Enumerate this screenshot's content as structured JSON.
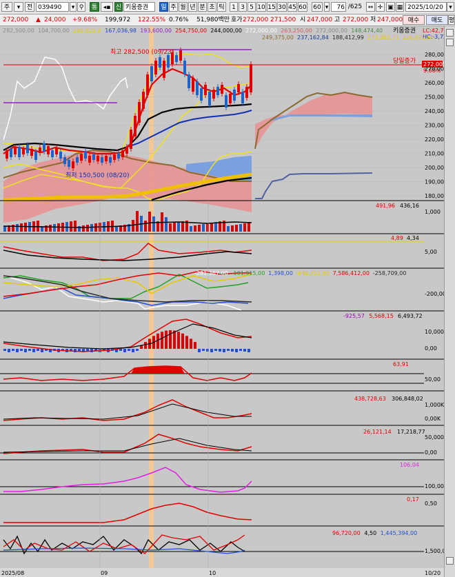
{
  "toolbar": {
    "market": "주",
    "type": "전",
    "code": "039490",
    "group_badge": "통",
    "grade_badge": "신",
    "name": "키움증권",
    "period_selected": "일",
    "periods": [
      "주",
      "월",
      "년",
      "분",
      "초",
      "틱"
    ],
    "intervals": [
      "1",
      "3",
      "5",
      "10",
      "15",
      "30",
      "45",
      "60",
      "60"
    ],
    "count": "76",
    "total": "/625",
    "date": "2025/10/20",
    "buy_label": "매수",
    "sell_label": "매도",
    "eval_label": "평"
  },
  "quote": {
    "price": "272,000",
    "change": "24,000",
    "change_pct": "+9.68%",
    "volume": "199,972",
    "vol_ratio": "122.55%",
    "turnover_pct": "0.76%",
    "amount": "51,980백만",
    "ask_label": "호가",
    "ask1": "272,000",
    "ask2": "271,500",
    "open_label": "시",
    "open": "247,000",
    "high_label": "고",
    "high": "272,000",
    "low_label": "저",
    "low": "247,000"
  },
  "legend": {
    "ma_values": [
      "282,500,00",
      "104,700,00",
      "192,025,0",
      "167,036,98",
      "193,600,00",
      "254,750,00",
      "244,000,00",
      "272,000,00",
      "263,250,00",
      "272,000,00",
      "148,474,40"
    ],
    "ma_colors": [
      "#8a8a8a",
      "#8a8a8a",
      "#e8c800",
      "#2040c0",
      "#9020c0",
      "#e00000",
      "#000000",
      "#ffffff",
      "#d06060",
      "#8a8a8a",
      "#4a8a4a"
    ],
    "name_label": "키움증권",
    "lc": "LC:42,78",
    "hc": "HC:-3,72",
    "row2": [
      "249,375,00",
      "237,162,84",
      "188,412,99",
      "273,392,71",
      "226,072,97"
    ],
    "row2_colors": [
      "#8a6a30",
      "#1a3a90",
      "#2a2a2a",
      "#e8c800",
      "#e8c800"
    ],
    "high_note": "최고 282,500 (09/23)",
    "low_note": "최저 150,500 (08/20)",
    "today_label": "당일증가",
    "price_tag": "272,000",
    "pct_tag": "9.68%"
  },
  "axes": {
    "price": [
      "280,000",
      "270,000",
      "260,000",
      "250,000",
      "240,000",
      "230,000",
      "220,000",
      "210,000",
      "200,000",
      "190,000",
      "180,000"
    ],
    "volume": [
      "1,000"
    ],
    "ind2": [
      "5,00"
    ],
    "ind3": [
      "-200,000"
    ],
    "ind4": [
      "10,000",
      "0,00"
    ],
    "ind5": [
      "50,00"
    ],
    "ind6": [
      "1,000K",
      "0,00K"
    ],
    "ind7": [
      "50,000",
      "0,00"
    ],
    "ind8": [
      "100,00"
    ],
    "ind9": [
      "0,50"
    ],
    "ind10": [
      "1,500,000"
    ],
    "dates": [
      "2025/08",
      "09",
      "10",
      "10/20"
    ]
  },
  "panels": {
    "volume": {
      "v1": "491,96",
      "v2": "436,16"
    },
    "ind2": {
      "v1": "4,89",
      "v2": "4,34"
    },
    "ind3": {
      "v": [
        "-281,367,00",
        "-101,915,00",
        "1,398,00",
        "-948,752,00",
        "7,586,412,00",
        "-258,709,00"
      ],
      "colors": [
        "#ffffff",
        "#20a020",
        "#2050d0",
        "#e8c800",
        "#e00000",
        "#2a2a2a"
      ]
    },
    "ind4": {
      "v": [
        "-925,57",
        "5,568,15",
        "6,493,72"
      ],
      "colors": [
        "#a000c0",
        "#e00000",
        "#000000"
      ]
    },
    "ind5": {
      "v": "63,91"
    },
    "ind6": {
      "v1": "438,728,63",
      "v2": "306,848,02"
    },
    "ind7": {
      "v1": "26,121,14",
      "v2": "17,218,77"
    },
    "ind8": {
      "v": "106,04"
    },
    "ind9": {
      "v": "0,17"
    },
    "ind10": {
      "v": [
        "96,720,00",
        "4,50",
        "1,445,394,00"
      ],
      "colors": [
        "#e00000",
        "#000000",
        "#2050d0"
      ]
    }
  },
  "colors": {
    "up": "#e00000",
    "down": "#1e64c8",
    "highlight": "#f5c890",
    "panel_bg": "#c8c8c8"
  }
}
